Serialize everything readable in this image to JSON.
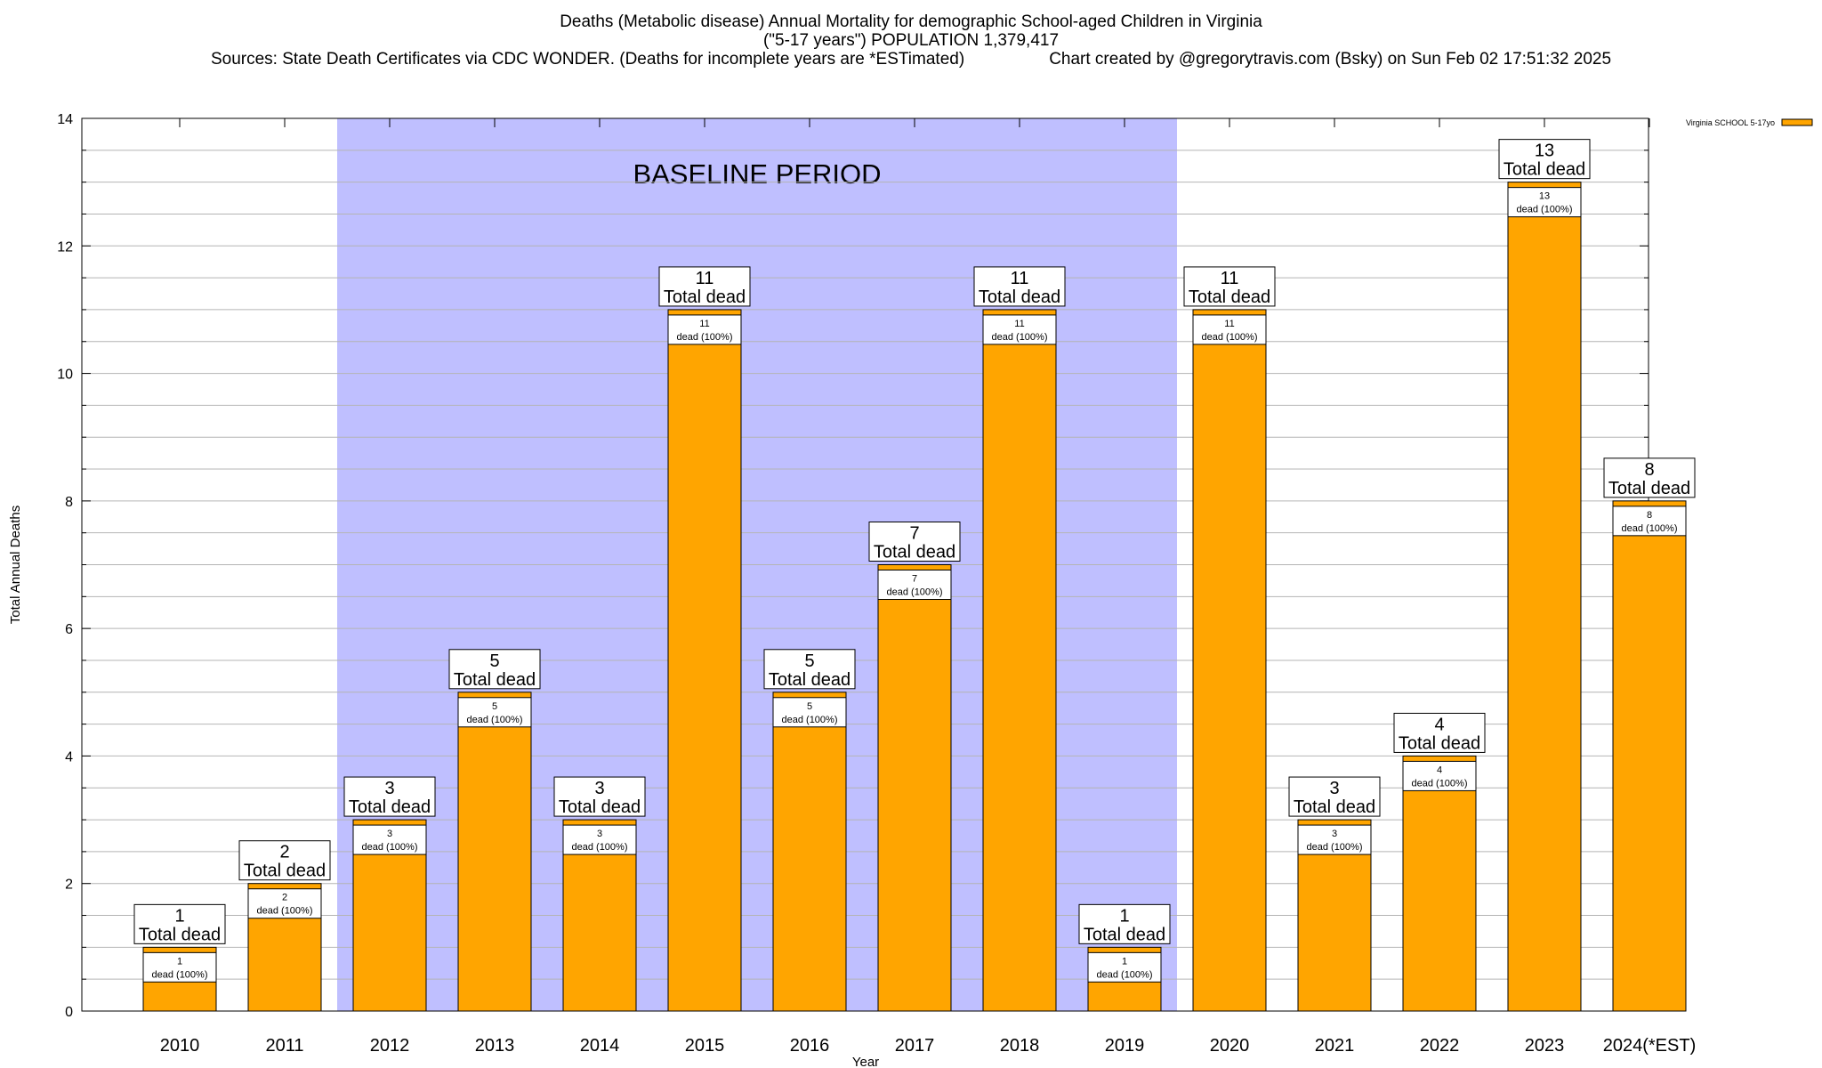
{
  "chart_data": {
    "type": "bar",
    "title": "Deaths (Metabolic disease) Annual Mortality for demographic School-aged Children in Virginia",
    "subtitle": "(\"5-17 years\") POPULATION 1,379,417",
    "sources": "Sources: State Death Certificates via CDC WONDER. (Deaths for incomplete years are *ESTimated)",
    "credit": "Chart created by @gregorytravis.com (Bsky) on Sun Feb 02 17:51:32 2025",
    "xlabel": "Year",
    "ylabel": "Total Annual Deaths",
    "ylim": [
      0,
      14
    ],
    "yticks": [
      0,
      2,
      4,
      6,
      8,
      10,
      12,
      14
    ],
    "categories": [
      "2010",
      "2011",
      "2012",
      "2013",
      "2014",
      "2015",
      "2016",
      "2017",
      "2018",
      "2019",
      "2020",
      "2021",
      "2022",
      "2023",
      "2024(*EST)"
    ],
    "series": [
      {
        "name": "Virginia SCHOOL 5-17yo",
        "color": "#ffa500",
        "values": [
          1,
          2,
          3,
          5,
          3,
          11,
          5,
          7,
          11,
          1,
          11,
          3,
          4,
          13,
          8
        ]
      }
    ],
    "bar_labels": [
      {
        "total": "1",
        "total_caption": "Total dead",
        "count": "1",
        "detail": "dead (100%)"
      },
      {
        "total": "2",
        "total_caption": "Total dead",
        "count": "2",
        "detail": "dead (100%)"
      },
      {
        "total": "3",
        "total_caption": "Total dead",
        "count": "3",
        "detail": "dead (100%)"
      },
      {
        "total": "5",
        "total_caption": "Total dead",
        "count": "5",
        "detail": "dead (100%)"
      },
      {
        "total": "3",
        "total_caption": "Total dead",
        "count": "3",
        "detail": "dead (100%)"
      },
      {
        "total": "11",
        "total_caption": "Total dead",
        "count": "11",
        "detail": "dead (100%)"
      },
      {
        "total": "5",
        "total_caption": "Total dead",
        "count": "5",
        "detail": "dead (100%)"
      },
      {
        "total": "7",
        "total_caption": "Total dead",
        "count": "7",
        "detail": "dead (100%)"
      },
      {
        "total": "11",
        "total_caption": "Total dead",
        "count": "11",
        "detail": "dead (100%)"
      },
      {
        "total": "1",
        "total_caption": "Total dead",
        "count": "1",
        "detail": "dead (100%)"
      },
      {
        "total": "11",
        "total_caption": "Total dead",
        "count": "11",
        "detail": "dead (100%)"
      },
      {
        "total": "3",
        "total_caption": "Total dead",
        "count": "3",
        "detail": "dead (100%)"
      },
      {
        "total": "4",
        "total_caption": "Total dead",
        "count": "4",
        "detail": "dead (100%)"
      },
      {
        "total": "13",
        "total_caption": "Total dead",
        "count": "13",
        "detail": "dead (100%)"
      },
      {
        "total": "8",
        "total_caption": "Total dead",
        "count": "8",
        "detail": "dead (100%)"
      }
    ],
    "baseline_period": {
      "label": "BASELINE PERIOD",
      "start": "2012",
      "end": "2019",
      "color": "#bfbfff"
    },
    "grid": true,
    "legend_position": "top-right"
  }
}
